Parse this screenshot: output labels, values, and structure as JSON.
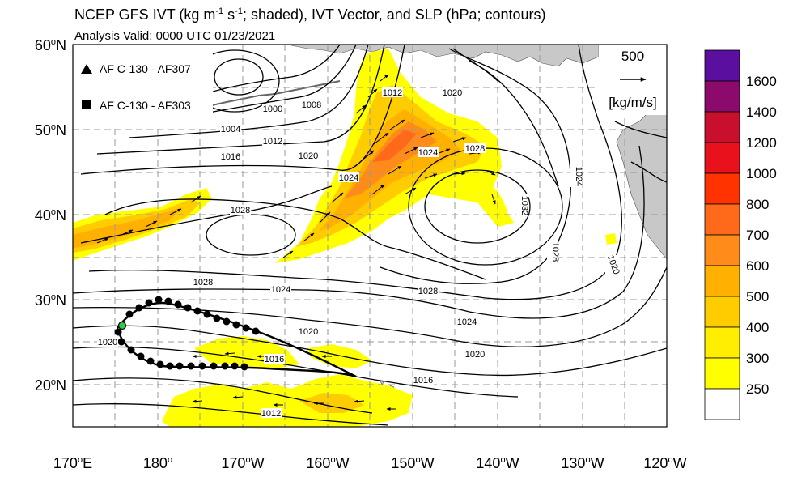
{
  "header": {
    "title_pre": "NCEP GFS IVT (kg m",
    "title_sup1": "-1",
    "title_mid": " s",
    "title_sup2": "-1",
    "title_post": "; shaded), IVT Vector, and SLP (hPa; contours)",
    "subtitle": "Analysis Valid: 0000 UTC 01/23/2021"
  },
  "legend": {
    "items": [
      {
        "marker": "triangle",
        "label": "AF C-130 - AF307"
      },
      {
        "marker": "square",
        "label": "AF C-130 - AF303"
      }
    ]
  },
  "vector_key": {
    "value": "500",
    "units": "[kg/m/s]"
  },
  "axes": {
    "lat_ticks": [
      "60",
      "50",
      "40",
      "30",
      "20"
    ],
    "lat_suffix": "N",
    "lon_ticks": [
      {
        "num": "170",
        "deg": "o",
        "hem": "E"
      },
      {
        "num": "180",
        "deg": "o",
        "hem": ""
      },
      {
        "num": "170",
        "deg": "o",
        "hem": "W"
      },
      {
        "num": "160",
        "deg": "o",
        "hem": "W"
      },
      {
        "num": "150",
        "deg": "o",
        "hem": "W"
      },
      {
        "num": "140",
        "deg": "o",
        "hem": "W"
      },
      {
        "num": "130",
        "deg": "o",
        "hem": "W"
      },
      {
        "num": "120",
        "deg": "o",
        "hem": "W"
      }
    ]
  },
  "colorbar": {
    "levels": [
      "1600",
      "1400",
      "1200",
      "1000",
      "800",
      "700",
      "600",
      "500",
      "400",
      "300",
      "250"
    ],
    "colors": [
      "#5b0f9e",
      "#8c0a6b",
      "#c8102e",
      "#e8111c",
      "#ff3300",
      "#ff6a1a",
      "#ff8c1a",
      "#ffb000",
      "#ffcc00",
      "#ffee00",
      "#ffff00",
      "#ffffff"
    ]
  },
  "contour_labels": [
    "1000",
    "1004",
    "1008",
    "1012",
    "1012",
    "1016",
    "1020",
    "1020",
    "1024",
    "1024",
    "1028",
    "1028",
    "1028",
    "1028",
    "1032",
    "1024",
    "1024",
    "1020",
    "1020",
    "1016",
    "1016",
    "1020",
    "1012",
    "1024",
    "1028",
    "1020",
    "1024",
    "1028"
  ]
}
